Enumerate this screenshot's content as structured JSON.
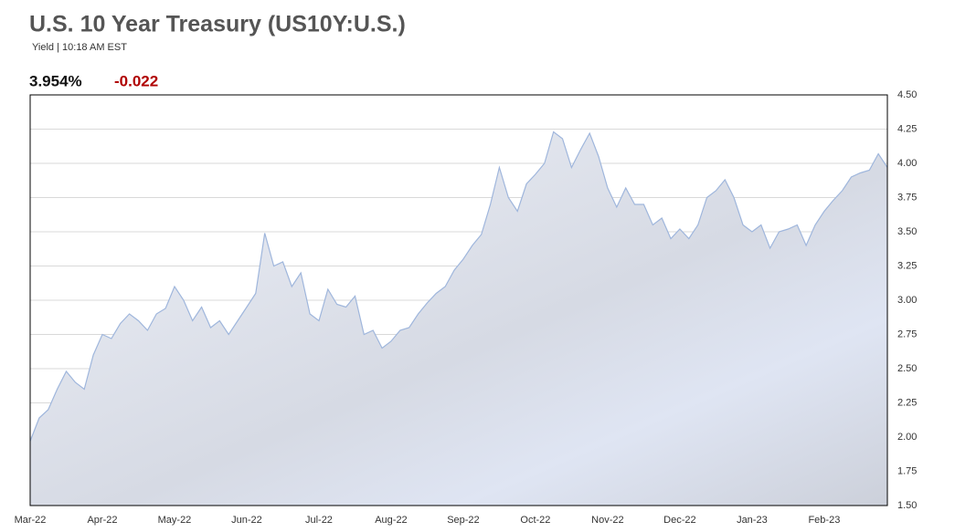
{
  "chart_data": {
    "type": "area",
    "title": "U.S. 10 Year Treasury (US10Y:U.S.)",
    "subtitle": "Yield | 10:18 AM EST",
    "last_value": "3.954%",
    "change": "-0.022",
    "color": "#9fb6dc",
    "grid": true,
    "categories": [
      "Mar-22",
      null,
      null,
      null,
      null,
      null,
      null,
      null,
      "Apr-22",
      null,
      null,
      null,
      null,
      null,
      null,
      null,
      "May-22",
      null,
      null,
      null,
      null,
      null,
      null,
      null,
      "Jun-22",
      null,
      null,
      null,
      null,
      null,
      null,
      null,
      "Jul-22",
      null,
      null,
      null,
      null,
      null,
      null,
      null,
      "Aug-22",
      null,
      null,
      null,
      null,
      null,
      null,
      null,
      "Sep-22",
      null,
      null,
      null,
      null,
      null,
      null,
      null,
      "Oct-22",
      null,
      null,
      null,
      null,
      null,
      null,
      null,
      "Nov-22",
      null,
      null,
      null,
      null,
      null,
      null,
      null,
      "Dec-22",
      null,
      null,
      null,
      null,
      null,
      null,
      null,
      "Jan-23",
      null,
      null,
      null,
      null,
      null,
      null,
      null,
      "Feb-23",
      null,
      null,
      null,
      null,
      null,
      null,
      null
    ],
    "values": [
      1.97,
      2.14,
      2.2,
      2.35,
      2.48,
      2.4,
      2.35,
      2.6,
      2.75,
      2.72,
      2.83,
      2.9,
      2.85,
      2.78,
      2.9,
      2.94,
      3.1,
      3.0,
      2.85,
      2.95,
      2.8,
      2.85,
      2.75,
      2.85,
      2.95,
      3.05,
      3.49,
      3.25,
      3.28,
      3.1,
      3.2,
      2.9,
      2.85,
      3.08,
      2.97,
      2.95,
      3.03,
      2.75,
      2.78,
      2.65,
      2.7,
      2.78,
      2.8,
      2.9,
      2.98,
      3.05,
      3.1,
      3.22,
      3.3,
      3.4,
      3.48,
      3.7,
      3.97,
      3.75,
      3.65,
      3.85,
      3.92,
      4.0,
      4.23,
      4.18,
      3.97,
      4.1,
      4.22,
      4.05,
      3.82,
      3.68,
      3.82,
      3.7,
      3.7,
      3.55,
      3.6,
      3.45,
      3.52,
      3.45,
      3.55,
      3.75,
      3.8,
      3.88,
      3.75,
      3.55,
      3.5,
      3.55,
      3.38,
      3.5,
      3.52,
      3.55,
      3.4,
      3.55,
      3.65,
      3.73,
      3.8,
      3.9,
      3.93,
      3.95,
      4.07,
      3.97
    ],
    "ylim": [
      1.5,
      4.5
    ],
    "yticks": [
      {
        "value": 1.5,
        "label": "1.50"
      },
      {
        "value": 1.75,
        "label": "1.75"
      },
      {
        "value": 2,
        "label": "2.00"
      },
      {
        "value": 2.25,
        "label": "2.25"
      },
      {
        "value": 2.5,
        "label": "2.50"
      },
      {
        "value": 2.75,
        "label": "2.75"
      },
      {
        "value": 3,
        "label": "3.00"
      },
      {
        "value": 3.25,
        "label": "3.25"
      },
      {
        "value": 3.5,
        "label": "3.50"
      },
      {
        "value": 3.75,
        "label": "3.75"
      },
      {
        "value": 4,
        "label": "4.00"
      },
      {
        "value": 4.25,
        "label": "4.25"
      },
      {
        "value": 4.5,
        "label": "4.50"
      }
    ]
  }
}
